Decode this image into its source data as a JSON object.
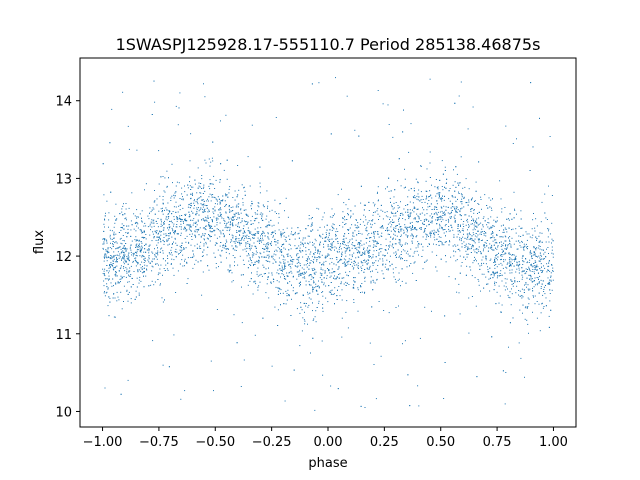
{
  "chart_data": {
    "type": "scatter",
    "title": "1SWASPJ125928.17-555110.7 Period 285138.46875s",
    "xlabel": "phase",
    "ylabel": "flux",
    "xlim": [
      -1.1,
      1.1
    ],
    "ylim": [
      9.8,
      14.55
    ],
    "x_ticks": [
      -1.0,
      -0.75,
      -0.5,
      -0.25,
      0.0,
      0.25,
      0.5,
      0.75,
      1.0
    ],
    "x_tick_labels": [
      "−1.00",
      "−0.75",
      "−0.50",
      "−0.25",
      "0.00",
      "0.25",
      "0.50",
      "0.75",
      "1.00"
    ],
    "y_ticks": [
      10,
      11,
      12,
      13,
      14
    ],
    "y_tick_labels": [
      "10",
      "11",
      "12",
      "13",
      "14"
    ],
    "grid": false,
    "legend": "none",
    "marker_color": "#1f77b4",
    "series": [
      {
        "x": [
          -1.0,
          -0.95,
          -0.9,
          -0.85,
          -0.8,
          -0.75,
          -0.7,
          -0.65,
          -0.6,
          -0.55,
          -0.5,
          -0.45,
          -0.4,
          -0.35,
          -0.3,
          -0.25,
          -0.2,
          -0.15,
          -0.1,
          -0.05,
          0.0,
          0.05,
          0.1,
          0.15,
          0.2,
          0.25,
          0.3,
          0.35,
          0.4,
          0.45,
          0.5,
          0.55,
          0.6,
          0.65,
          0.7,
          0.75,
          0.8,
          0.85,
          0.9,
          0.95,
          1.0
        ],
        "y": [
          11.95,
          11.97,
          12.02,
          12.08,
          12.15,
          12.25,
          12.35,
          12.42,
          12.48,
          12.5,
          12.47,
          12.42,
          12.35,
          12.25,
          12.15,
          12.05,
          11.95,
          11.88,
          11.85,
          11.87,
          11.95,
          11.98,
          12.02,
          12.08,
          12.15,
          12.25,
          12.35,
          12.42,
          12.48,
          12.5,
          12.47,
          12.42,
          12.35,
          12.25,
          12.15,
          12.05,
          11.95,
          11.88,
          11.85,
          11.87,
          11.95
        ],
        "scatter_sigma": 0.3,
        "outlier_range": [
          10.0,
          14.35
        ]
      }
    ]
  }
}
